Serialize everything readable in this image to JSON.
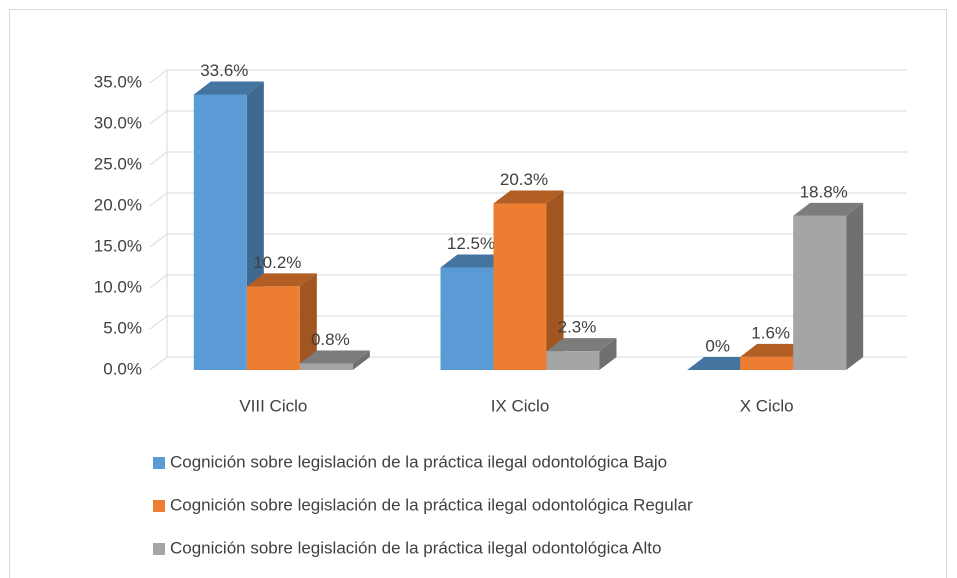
{
  "chart_data": {
    "type": "bar3d",
    "categories": [
      "VIII Ciclo",
      "IX Ciclo",
      "X Ciclo"
    ],
    "series": [
      {
        "name": "Cognición sobre legislación de la práctica ilegal odontológica Bajo",
        "color": "#5b9bd5",
        "values": [
          33.6,
          12.5,
          0
        ],
        "value_labels": [
          "33.6%",
          "12.5%",
          "0%"
        ]
      },
      {
        "name": "Cognición sobre legislación de la práctica ilegal odontológica Regular",
        "color": "#ed7d31",
        "values": [
          10.2,
          20.3,
          1.6
        ],
        "value_labels": [
          "10.2%",
          "20.3%",
          "1.6%"
        ]
      },
      {
        "name": "Cognición sobre legislación de la práctica ilegal odontológica Alto",
        "color": "#a5a5a5",
        "values": [
          0.8,
          2.3,
          18.8
        ],
        "value_labels": [
          "0.8%",
          "2.3%",
          "18.8%"
        ]
      }
    ],
    "ylim": [
      0,
      35
    ],
    "yticks": [
      {
        "value": 0,
        "label": "0.0%"
      },
      {
        "value": 5,
        "label": "5.0%"
      },
      {
        "value": 10,
        "label": "10.0%"
      },
      {
        "value": 15,
        "label": "15.0%"
      },
      {
        "value": 20,
        "label": "20.0%"
      },
      {
        "value": 25,
        "label": "25.0%"
      },
      {
        "value": 30,
        "label": "30.0%"
      },
      {
        "value": 35,
        "label": "35.0%"
      }
    ],
    "grid": true,
    "legend": "bottom"
  }
}
